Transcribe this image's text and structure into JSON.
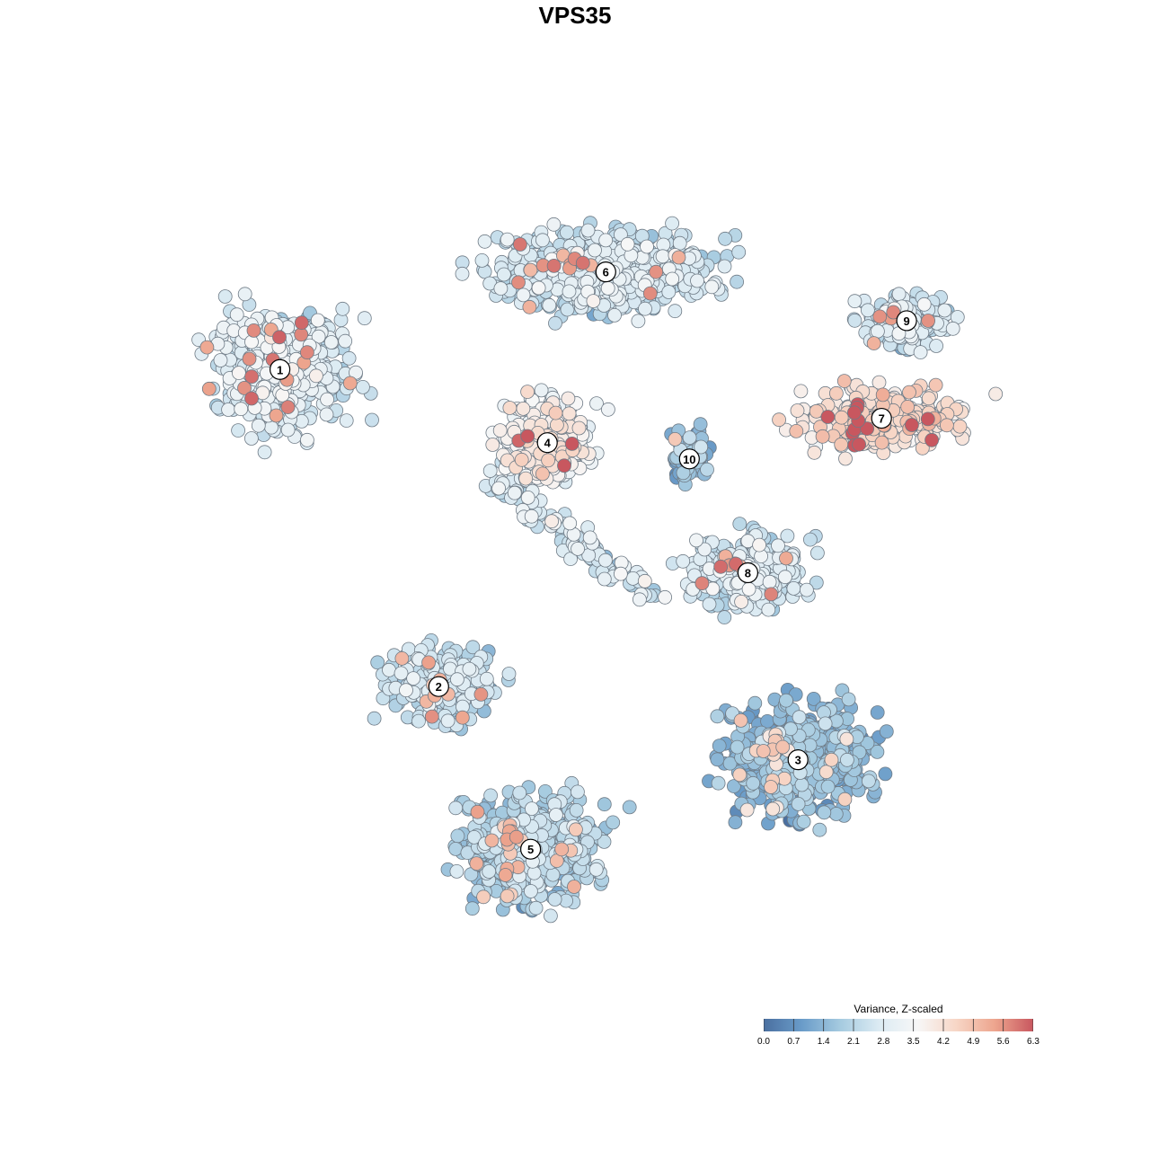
{
  "chart_data": {
    "type": "scatter",
    "title": "VPS35",
    "xlabel": "",
    "ylabel": "",
    "grid": false,
    "legend": {
      "title": "Variance, Z-scaled",
      "placement": "bottom-right",
      "ticks": [
        "0.0",
        "0.7",
        "1.4",
        "2.1",
        "2.8",
        "3.5",
        "4.2",
        "4.9",
        "5.6",
        "6.3"
      ],
      "range": [
        0,
        6.3
      ]
    },
    "colorscale": [
      "#4a6fa0",
      "#6a9cc9",
      "#a6cbe0",
      "#dcebf3",
      "#f7f7f7",
      "#f7d6c6",
      "#eda58e",
      "#c8575f"
    ],
    "clusters": [
      {
        "label": "1",
        "x": 0.12,
        "y": 0.75,
        "level": 2.7
      },
      {
        "label": "2",
        "x": 0.31,
        "y": 0.36,
        "level": 2.2
      },
      {
        "label": "3",
        "x": 0.74,
        "y": 0.27,
        "level": 1.4
      },
      {
        "label": "4",
        "x": 0.44,
        "y": 0.66,
        "level": 3.6
      },
      {
        "label": "5",
        "x": 0.42,
        "y": 0.16,
        "level": 2.0
      },
      {
        "label": "6",
        "x": 0.51,
        "y": 0.87,
        "level": 2.5
      },
      {
        "label": "7",
        "x": 0.84,
        "y": 0.69,
        "level": 4.2
      },
      {
        "label": "8",
        "x": 0.68,
        "y": 0.5,
        "level": 2.6
      },
      {
        "label": "9",
        "x": 0.87,
        "y": 0.81,
        "level": 2.5
      },
      {
        "label": "10",
        "x": 0.61,
        "y": 0.64,
        "level": 1.3
      }
    ]
  }
}
